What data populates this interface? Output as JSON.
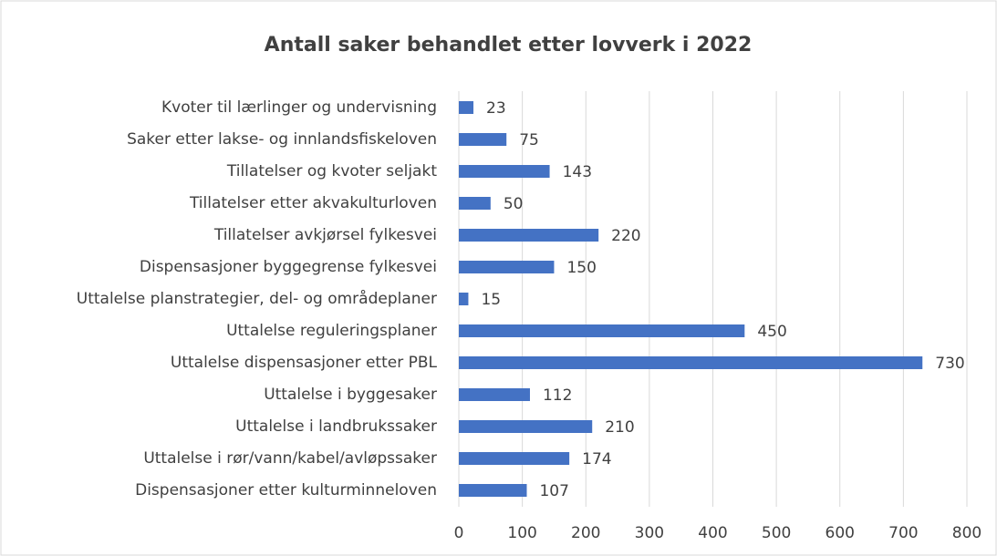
{
  "chart_data": {
    "type": "bar",
    "orientation": "horizontal",
    "title": "Antall saker behandlet etter lovverk i 2022",
    "categories": [
      "Kvoter til lærlinger og undervisning",
      "Saker etter lakse- og innlandsfiskeloven",
      "Tillatelser og kvoter seljakt",
      "Tillatelser etter akvakulturloven",
      "Tillatelser avkjørsel fylkesvei",
      "Dispensasjoner byggegrense fylkesvei",
      "Uttalelse planstrategier, del- og områdeplaner",
      "Uttalelse reguleringsplaner",
      "Uttalelse dispensasjoner etter PBL",
      "Uttalelse i byggesaker",
      "Uttalelse i landbrukssaker",
      "Uttalelse i rør/vann/kabel/avløpssaker",
      "Dispensasjoner etter kulturminneloven"
    ],
    "values": [
      23,
      75,
      143,
      50,
      220,
      150,
      15,
      450,
      730,
      112,
      210,
      174,
      107
    ],
    "color": "#4472c4",
    "xlim": [
      0,
      800
    ],
    "xticks": [
      0,
      100,
      200,
      300,
      400,
      500,
      600,
      700,
      800
    ],
    "grid": true
  }
}
